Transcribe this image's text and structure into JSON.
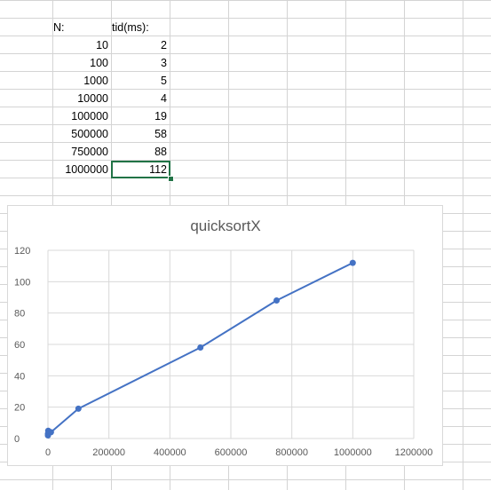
{
  "table": {
    "headers": [
      "N:",
      "tid(ms):"
    ],
    "rows": [
      {
        "n": "10",
        "t": "2"
      },
      {
        "n": "100",
        "t": "3"
      },
      {
        "n": "1000",
        "t": "5"
      },
      {
        "n": "10000",
        "t": "4"
      },
      {
        "n": "100000",
        "t": "19"
      },
      {
        "n": "500000",
        "t": "58"
      },
      {
        "n": "750000",
        "t": "88"
      },
      {
        "n": "1000000",
        "t": "112"
      }
    ]
  },
  "chart_data": {
    "type": "scatter",
    "title": "quicksortX",
    "xlabel": "",
    "ylabel": "",
    "x": [
      10,
      100,
      1000,
      10000,
      100000,
      500000,
      750000,
      1000000
    ],
    "y": [
      2,
      3,
      5,
      4,
      19,
      58,
      88,
      112
    ],
    "xlim": [
      0,
      1200000
    ],
    "ylim": [
      0,
      120
    ],
    "x_ticks": [
      "0",
      "200000",
      "400000",
      "600000",
      "800000",
      "1000000",
      "1200000"
    ],
    "y_ticks": [
      "0",
      "20",
      "40",
      "60",
      "80",
      "100",
      "120"
    ],
    "x_tick_values": [
      0,
      200000,
      400000,
      600000,
      800000,
      1000000,
      1200000
    ],
    "y_tick_values": [
      0,
      20,
      40,
      60,
      80,
      100,
      120
    ],
    "series": [
      {
        "values": [
          2,
          3,
          5,
          4,
          19,
          58,
          88,
          112
        ],
        "color": "#4472c4"
      }
    ],
    "grid": true,
    "connect_points": true,
    "legend": "none"
  },
  "colors": {
    "series": "#4472c4",
    "selection": "#217346",
    "gridline": "#d9d9d9",
    "axis_text": "#595959"
  }
}
